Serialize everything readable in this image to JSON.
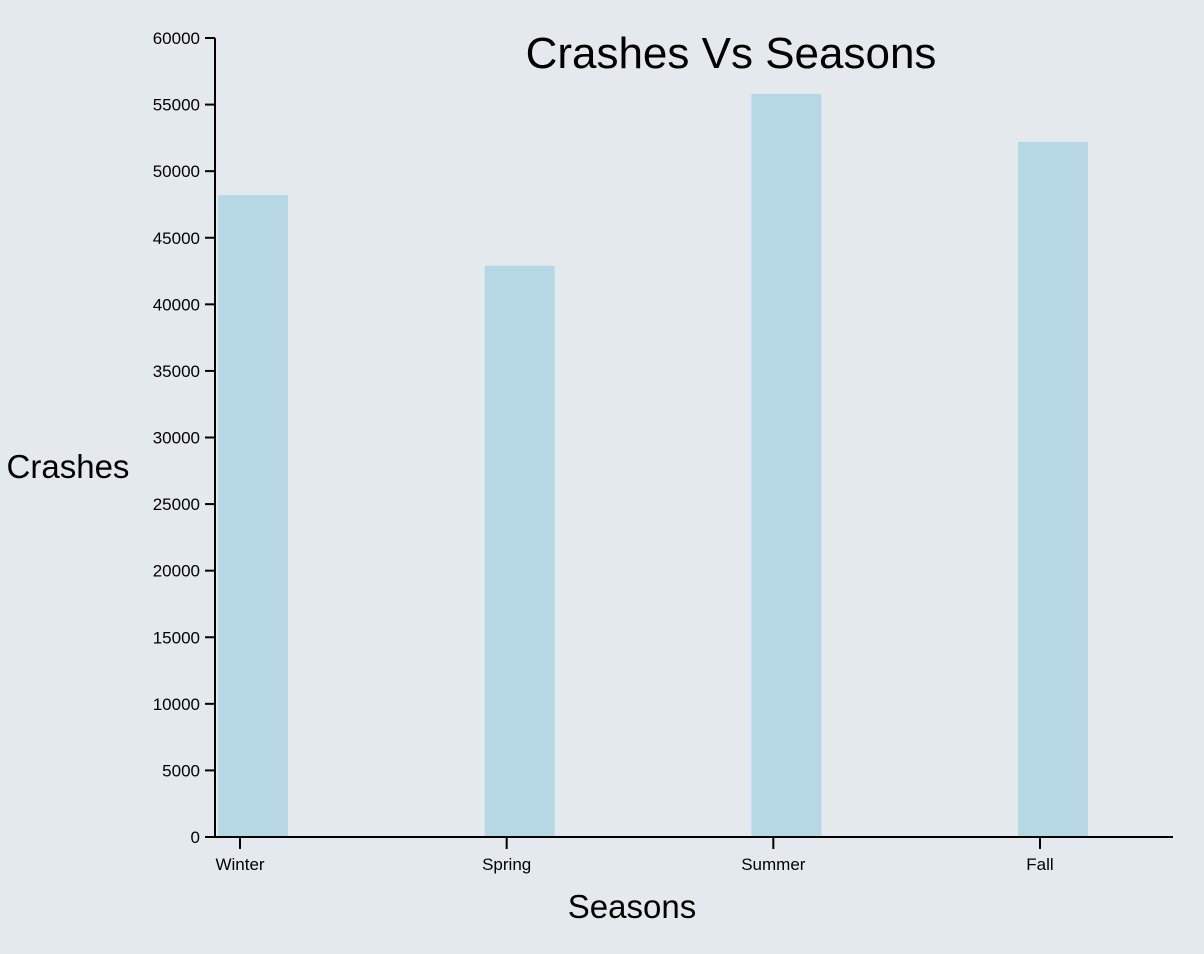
{
  "chart_data": {
    "type": "bar",
    "title": "Crashes Vs Seasons",
    "xlabel": "Seasons",
    "ylabel": "Crashes",
    "categories": [
      "Winter",
      "Spring",
      "Summer",
      "Fall"
    ],
    "values": [
      48200,
      42900,
      55800,
      52200
    ],
    "ylim": [
      0,
      60000
    ],
    "yticks": [
      0,
      5000,
      10000,
      15000,
      20000,
      25000,
      30000,
      35000,
      40000,
      45000,
      50000,
      55000,
      60000
    ],
    "bar_color": "#b6d8e4",
    "grid": false,
    "legend": "none"
  }
}
